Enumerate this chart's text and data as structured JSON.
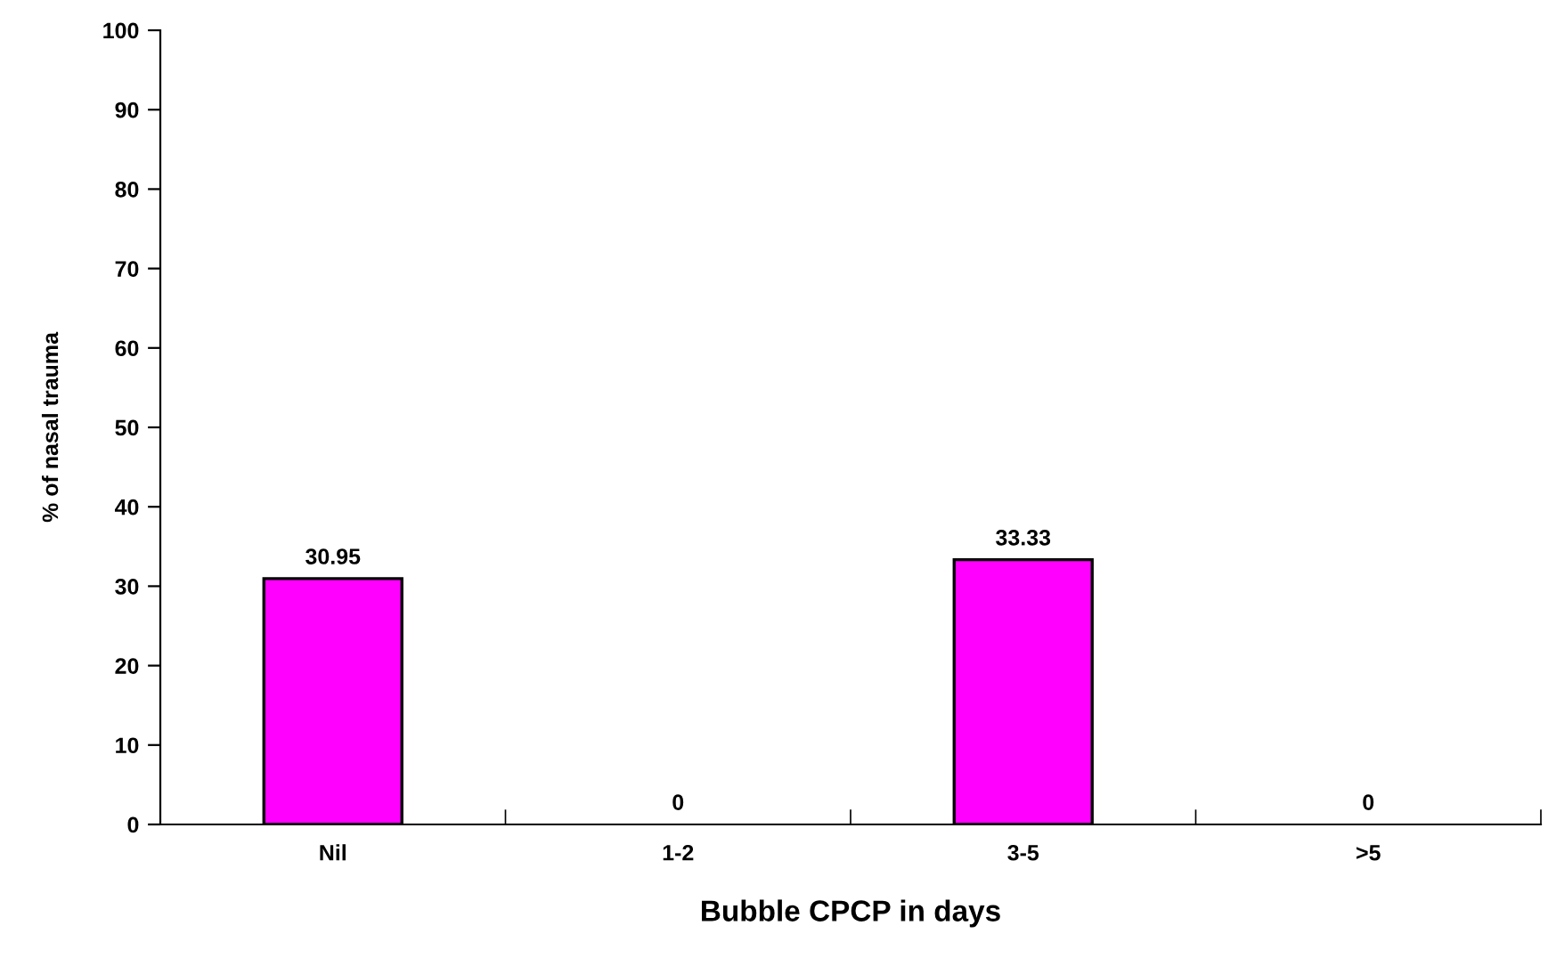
{
  "chart_data": {
    "type": "bar",
    "xlabel": "Bubble CPCP in days",
    "ylabel": "% of nasal trauma",
    "categories": [
      "Nil",
      "1-2",
      "3-5",
      ">5"
    ],
    "values": [
      30.95,
      0,
      33.33,
      0
    ],
    "color": "#ff00ff",
    "ylim": [
      0,
      100
    ],
    "yticks": [
      0,
      10,
      20,
      30,
      40,
      50,
      60,
      70,
      80,
      90,
      100
    ],
    "data_labels": true,
    "grid": false,
    "legend": false
  }
}
